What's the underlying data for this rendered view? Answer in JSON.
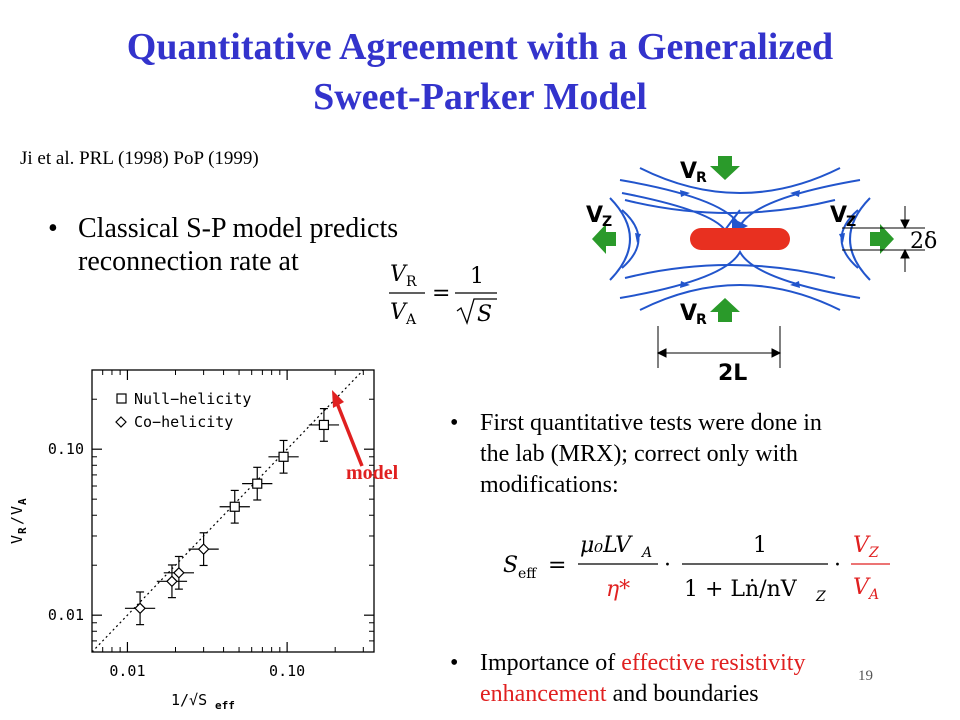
{
  "title": {
    "line1": "Quantitative Agreement with a Generalized",
    "line2": "Sweet-Parker Model"
  },
  "reference": "Ji et al. PRL (1998) PoP (1999)",
  "bullet1": {
    "line1": "Classical S-P model predicts",
    "line2": "reconnection rate at"
  },
  "formula1": {
    "lhs_num": "V",
    "lhs_num_sub": "R",
    "lhs_den": "V",
    "lhs_den_sub": "A",
    "rhs_num": "1",
    "rhs_den": "S"
  },
  "diagram": {
    "vr_top": "V",
    "vr_top_sub": "R",
    "vr_bottom": "V",
    "vr_bottom_sub": "R",
    "vz_left": "V",
    "vz_left_sub": "Z",
    "vz_right": "V",
    "vz_right_sub": "Z",
    "thickness": "2δ",
    "length": "2L",
    "colors": {
      "field_lines": "#2255cc",
      "current_sheet": "#e83020",
      "arrows": "#2a9a2a"
    }
  },
  "plot": {
    "legend": [
      "Null−helicity",
      "Co−helicity"
    ],
    "xlabel": "1/√S",
    "xlabel_sub": "eff",
    "ylabel": "V",
    "ylabel_sub1": "R",
    "ylabel_sub2": "A",
    "model_label": "model"
  },
  "chart_data": {
    "type": "scatter",
    "xscale": "log",
    "yscale": "log",
    "xlim": [
      0.006,
      0.35
    ],
    "ylim": [
      0.006,
      0.3
    ],
    "xticks": [
      "0.01",
      "0.10"
    ],
    "yticks": [
      "0.01",
      "0.10"
    ],
    "reference_line": "y = x",
    "series": [
      {
        "name": "Null−helicity",
        "marker": "square",
        "points": [
          {
            "x": 0.047,
            "y": 0.045
          },
          {
            "x": 0.065,
            "y": 0.062
          },
          {
            "x": 0.095,
            "y": 0.09
          },
          {
            "x": 0.17,
            "y": 0.14
          }
        ]
      },
      {
        "name": "Co−helicity",
        "marker": "diamond",
        "points": [
          {
            "x": 0.012,
            "y": 0.011
          },
          {
            "x": 0.019,
            "y": 0.016
          },
          {
            "x": 0.021,
            "y": 0.018
          },
          {
            "x": 0.03,
            "y": 0.025
          }
        ]
      }
    ]
  },
  "bullet2": {
    "line1": "First quantitative tests were done in",
    "line2": "the lab (MRX); correct only with",
    "line3": "modifications:"
  },
  "formula2": {
    "lhs": "S",
    "lhs_sub": "eff",
    "f1_num": "μ₀LV",
    "f1_num_sub": "A",
    "f1_den": "η*",
    "f2_num": "1",
    "f2_den": "1 + Lṅ/nV",
    "f2_den_sub": "Z",
    "f3_num": "V",
    "f3_num_sub": "Z",
    "f3_den": "V",
    "f3_den_sub": "A"
  },
  "bullet3": {
    "prefix": "Importance of ",
    "red_part1": "effective resistivity",
    "red_part2": "enhancement",
    "suffix": " and boundaries"
  },
  "page_number": "19"
}
